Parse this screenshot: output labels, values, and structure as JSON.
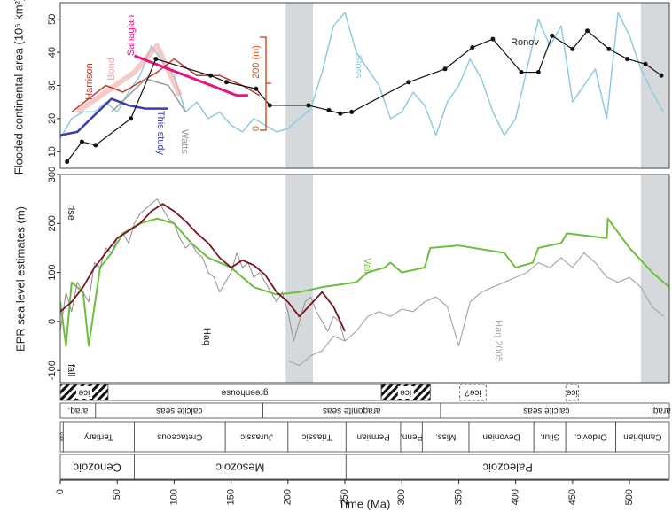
{
  "chart_data": [
    {
      "type": "line",
      "ylabel": "Flooded continental area (10⁶ km²)",
      "xlim": [
        0,
        535
      ],
      "ylim": [
        5,
        55
      ],
      "yticks": [
        10,
        20,
        30,
        40,
        50
      ],
      "shaded": [
        [
          198,
          222
        ],
        [
          510,
          535
        ]
      ],
      "shade_color": "#d6d9dc",
      "annotations": [
        "200 (m)",
        "0"
      ],
      "series": [
        {
          "name": "Sloss",
          "color": "#8fcbe0",
          "line_width": 1.5,
          "x": [
            0,
            10,
            20,
            30,
            40,
            50,
            60,
            70,
            80,
            90,
            100,
            110,
            120,
            130,
            140,
            150,
            160,
            170,
            180,
            190,
            200,
            210,
            220,
            230,
            240,
            250,
            260,
            270,
            280,
            290,
            300,
            310,
            320,
            330,
            340,
            350,
            360,
            370,
            380,
            390,
            400,
            410,
            420,
            430,
            440,
            450,
            460,
            470,
            480,
            490,
            500,
            510,
            520,
            530
          ],
          "values": [
            14,
            20,
            22,
            22,
            25,
            22,
            28,
            33,
            42,
            37,
            33,
            22,
            25,
            20,
            22,
            18,
            16,
            20,
            18,
            16,
            17,
            20,
            23,
            34,
            48,
            52,
            40,
            35,
            30,
            20,
            22,
            28,
            24,
            15,
            25,
            30,
            38,
            32,
            22,
            15,
            20,
            35,
            50,
            42,
            48,
            25,
            30,
            35,
            20,
            52,
            45,
            35,
            28,
            22
          ]
        },
        {
          "name": "Bond",
          "color": "#f2a7a7",
          "line_width": 6,
          "opacity": 0.6,
          "x": [
            15,
            40,
            65,
            85,
            105
          ],
          "values": [
            22,
            28,
            34,
            42,
            27
          ]
        },
        {
          "name": "Harrison",
          "color": "#c0392b",
          "line_width": 1.5,
          "x": [
            10,
            25,
            40,
            55,
            70,
            85,
            100,
            120,
            140,
            160,
            175
          ],
          "values": [
            22,
            26,
            30,
            28,
            31,
            34,
            38,
            33,
            33,
            30,
            27
          ]
        },
        {
          "name": "Watts",
          "color": "#9a9a9a",
          "line_width": 1.5,
          "x": [
            45,
            60,
            75,
            95,
            110
          ],
          "values": [
            22,
            27,
            32,
            30,
            22
          ]
        },
        {
          "name": "This study",
          "color": "#3b3bb0",
          "line_width": 2.5,
          "x": [
            0,
            15,
            30,
            45,
            60,
            75,
            95
          ],
          "values": [
            15,
            16,
            21,
            26,
            24,
            23,
            23
          ]
        },
        {
          "name": "Sahagian",
          "color": "#e0187f",
          "line_width": 3,
          "x": [
            65,
            155,
            165
          ],
          "values": [
            39,
            27,
            27
          ]
        },
        {
          "name": "Ronov",
          "color": "#111111",
          "line_width": 1.2,
          "markers": true,
          "x": [
            6,
            19,
            31,
            62,
            84,
            132,
            146,
            172,
            184,
            218,
            236,
            246,
            256,
            306,
            338,
            362,
            380,
            405,
            420,
            432,
            450,
            463,
            482,
            498,
            514,
            528
          ],
          "values": [
            7,
            13,
            12,
            20,
            38,
            33,
            31,
            29,
            24,
            24,
            22.5,
            21.5,
            22,
            31,
            35,
            41.5,
            44,
            34,
            34,
            45,
            41,
            46.5,
            41,
            38,
            36.5,
            33
          ]
        }
      ]
    },
    {
      "type": "line",
      "ylabel": "EPR sea level estimates (m)",
      "xlabel": "Time (Ma)",
      "xlim": [
        0,
        535
      ],
      "ylim": [
        -125,
        300
      ],
      "yticks": [
        -100,
        0,
        100,
        200,
        300
      ],
      "xticks": [
        0,
        50,
        100,
        150,
        200,
        250,
        300,
        350,
        400,
        450,
        500
      ],
      "shaded": [
        [
          198,
          222
        ],
        [
          510,
          535
        ]
      ],
      "shade_color": "#d6d9dc",
      "annotations": [
        "rise",
        "fall"
      ],
      "series": [
        {
          "name": "Haq 2005",
          "color": "#a8a8a8",
          "line_width": 1.2,
          "x": [
            200,
            210,
            220,
            230,
            240,
            250,
            260,
            270,
            280,
            290,
            300,
            310,
            320,
            330,
            340,
            350,
            360,
            370,
            380,
            390,
            400,
            410,
            420,
            430,
            440,
            450,
            460,
            470,
            480,
            490,
            500,
            510,
            520,
            530
          ],
          "values": [
            -80,
            -90,
            -70,
            -60,
            -30,
            -40,
            -20,
            10,
            20,
            10,
            25,
            20,
            40,
            50,
            30,
            -50,
            40,
            60,
            70,
            80,
            90,
            100,
            120,
            110,
            130,
            110,
            140,
            120,
            90,
            80,
            90,
            70,
            30,
            10
          ]
        },
        {
          "name": "Vail",
          "color": "#6cbf3c",
          "line_width": 2,
          "x": [
            0,
            5,
            10,
            20,
            25,
            35,
            45,
            55,
            70,
            85,
            100,
            115,
            130,
            150,
            170,
            190,
            210,
            230,
            260,
            270,
            285,
            290,
            300,
            320,
            325,
            350,
            390,
            400,
            415,
            420,
            440,
            445,
            480,
            481,
            500,
            520,
            535
          ],
          "values": [
            40,
            -50,
            80,
            60,
            -50,
            110,
            140,
            180,
            200,
            210,
            200,
            160,
            130,
            110,
            70,
            55,
            60,
            70,
            80,
            100,
            110,
            120,
            100,
            110,
            150,
            155,
            140,
            110,
            120,
            150,
            160,
            180,
            170,
            210,
            150,
            100,
            70
          ]
        },
        {
          "name": "Haq",
          "color": "#8f8f8f",
          "line_width": 1,
          "x": [
            0,
            5,
            10,
            15,
            20,
            25,
            30,
            35,
            40,
            45,
            50,
            55,
            60,
            65,
            70,
            75,
            80,
            85,
            90,
            95,
            100,
            105,
            110,
            115,
            120,
            125,
            130,
            135,
            140,
            145,
            150,
            155,
            160,
            165,
            170,
            175,
            180,
            185,
            190,
            195,
            200,
            205,
            210,
            215,
            220,
            225,
            230,
            235,
            240,
            245,
            250
          ],
          "values": [
            -20,
            60,
            20,
            80,
            60,
            40,
            120,
            110,
            150,
            140,
            170,
            180,
            160,
            200,
            220,
            230,
            240,
            250,
            230,
            210,
            200,
            170,
            150,
            160,
            140,
            130,
            100,
            90,
            60,
            80,
            100,
            140,
            110,
            120,
            90,
            100,
            80,
            60,
            40,
            60,
            20,
            -40,
            0,
            40,
            50,
            20,
            0,
            -20,
            10,
            0,
            -40
          ]
        },
        {
          "color": "#7a1420",
          "line_width": 1.8,
          "x": [
            0,
            10,
            20,
            30,
            40,
            50,
            60,
            70,
            80,
            90,
            100,
            110,
            120,
            130,
            140,
            150,
            160,
            170,
            180,
            190,
            200,
            210,
            220,
            230,
            240,
            250
          ],
          "values": [
            20,
            40,
            70,
            110,
            140,
            170,
            185,
            200,
            225,
            240,
            225,
            205,
            180,
            160,
            130,
            110,
            125,
            115,
            95,
            60,
            40,
            10,
            35,
            60,
            30,
            -20
          ]
        }
      ]
    }
  ],
  "time_scale": {
    "rows": [
      {
        "intervals": [
          {
            "label": "ice",
            "start": 0,
            "end": 42,
            "style": "hatched"
          },
          {
            "label": "greenhouse",
            "start": 42,
            "end": 282,
            "style": "solid"
          },
          {
            "label": "ice",
            "start": 282,
            "end": 325,
            "style": "hatched"
          },
          {
            "label": "ice?",
            "start": 351,
            "end": 374,
            "style": "dashed"
          },
          {
            "label": "ice",
            "start": 444,
            "end": 455,
            "style": "dashed"
          }
        ]
      },
      {
        "intervals": [
          {
            "label": "arag.",
            "start": 0,
            "end": 31,
            "style": "solid"
          },
          {
            "label": "calcite seas",
            "start": 31,
            "end": 178,
            "style": "solid"
          },
          {
            "label": "aragonite seas",
            "start": 178,
            "end": 334,
            "style": "solid"
          },
          {
            "label": "calcite seas",
            "start": 334,
            "end": 520,
            "style": "solid"
          },
          {
            "label": "arag.",
            "start": 520,
            "end": 535,
            "style": "solid"
          }
        ]
      },
      {
        "intervals": [
          {
            "label": "Quat",
            "start": 0,
            "end": 2.6,
            "style": "solid"
          },
          {
            "label": "Tertiary",
            "start": 2.6,
            "end": 65,
            "style": "solid"
          },
          {
            "label": "Cretaceous",
            "start": 65,
            "end": 145,
            "style": "solid"
          },
          {
            "label": "Jurassic",
            "start": 145,
            "end": 200,
            "style": "solid"
          },
          {
            "label": "Triassic",
            "start": 200,
            "end": 251,
            "style": "solid"
          },
          {
            "label": "Permian",
            "start": 251,
            "end": 299,
            "style": "solid"
          },
          {
            "label": "Penn.",
            "start": 299,
            "end": 318,
            "style": "solid"
          },
          {
            "label": "Miss.",
            "start": 318,
            "end": 359,
            "style": "solid"
          },
          {
            "label": "Devonian",
            "start": 359,
            "end": 416,
            "style": "solid"
          },
          {
            "label": "Silur.",
            "start": 416,
            "end": 444,
            "style": "solid"
          },
          {
            "label": "Ordovic.",
            "start": 444,
            "end": 488,
            "style": "solid"
          },
          {
            "label": "Cambrian",
            "start": 488,
            "end": 535,
            "style": "solid"
          }
        ]
      },
      {
        "intervals": [
          {
            "label": "Cenozoic",
            "start": 0,
            "end": 65,
            "style": "solid"
          },
          {
            "label": "Mesozoic",
            "start": 65,
            "end": 251,
            "style": "solid"
          },
          {
            "label": "Paleozoic",
            "start": 251,
            "end": 535,
            "style": "solid"
          }
        ]
      }
    ]
  }
}
